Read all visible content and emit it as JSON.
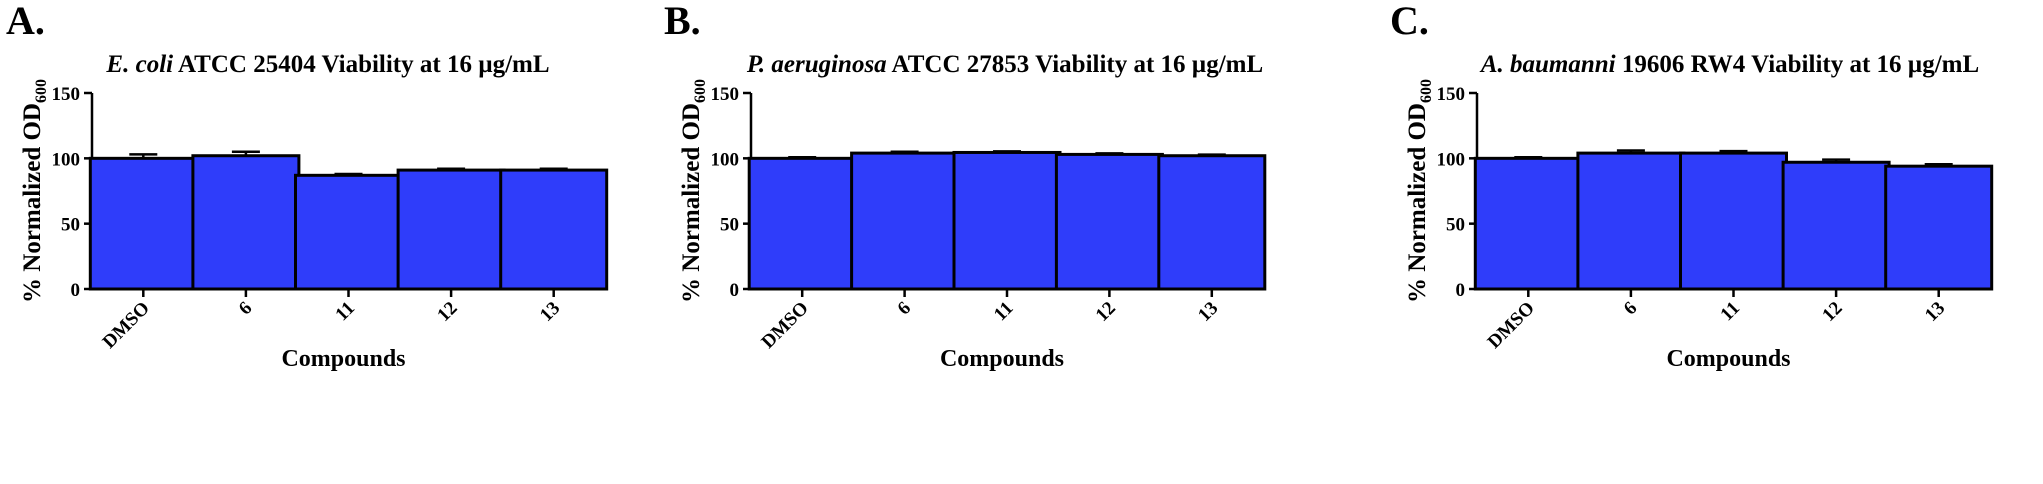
{
  "chart_data": [
    {
      "type": "bar",
      "panel": "A.",
      "title_italic": "E. coli",
      "title_rest": " ATCC 25404 Viability at 16 µg/mL",
      "xlabel": "Compounds",
      "ylabel": "% Normalized OD",
      "ylabel_sub": "600",
      "ylim": [
        0,
        150
      ],
      "yticks": [
        0,
        50,
        100,
        150
      ],
      "categories": [
        "DMSO",
        "6",
        "11",
        "12",
        "13"
      ],
      "values": [
        100,
        102,
        87,
        91,
        91
      ],
      "errors": [
        3,
        3,
        1,
        1,
        1
      ],
      "bar_color": "#2f3dfa"
    },
    {
      "type": "bar",
      "panel": "B.",
      "title_italic": "P. aeruginosa",
      "title_rest": " ATCC 27853 Viability at 16 µg/mL",
      "xlabel": "Compounds",
      "ylabel": "% Normalized OD",
      "ylabel_sub": "600",
      "ylim": [
        0,
        150
      ],
      "yticks": [
        0,
        50,
        100,
        150
      ],
      "categories": [
        "DMSO",
        "6",
        "11",
        "12",
        "13"
      ],
      "values": [
        100,
        104,
        104.5,
        103,
        102
      ],
      "errors": [
        0.8,
        1,
        0.8,
        0.8,
        0.8
      ],
      "bar_color": "#2f3dfa"
    },
    {
      "type": "bar",
      "panel": "C.",
      "title_italic": "A. baumanni",
      "title_rest": " 19606 RW4 Viability at 16 µg/mL",
      "xlabel": "Compounds",
      "ylabel": "% Normalized OD",
      "ylabel_sub": "600",
      "ylim": [
        0,
        150
      ],
      "yticks": [
        0,
        50,
        100,
        150
      ],
      "categories": [
        "DMSO",
        "6",
        "11",
        "12",
        "13"
      ],
      "values": [
        100,
        104,
        104,
        97,
        94
      ],
      "errors": [
        0.8,
        2,
        1.5,
        2,
        1.5
      ],
      "bar_color": "#2f3dfa"
    }
  ]
}
